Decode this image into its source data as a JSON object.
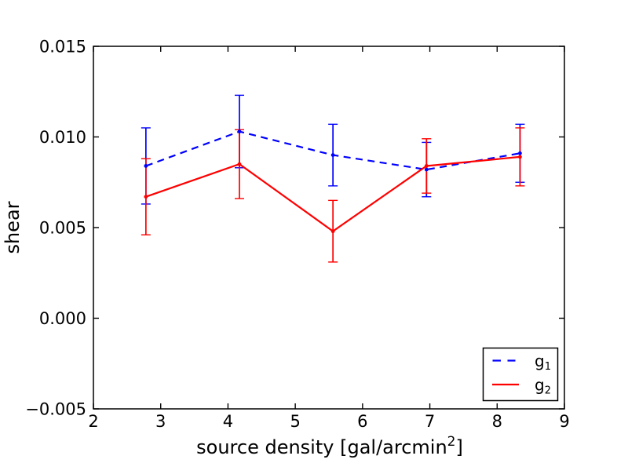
{
  "figure": {
    "background": "#ffffff",
    "axis_color": "#000000"
  },
  "chart_data": {
    "type": "line",
    "title": "",
    "xlabel": "source density [gal/arcmin^2]",
    "xlabel_parts": {
      "prefix": "source density [gal/arcmin",
      "superscript": "2",
      "suffix": "]"
    },
    "ylabel": "shear",
    "xlim": [
      2,
      9
    ],
    "ylim": [
      -0.005,
      0.015
    ],
    "grid": false,
    "legend_position": "lower right",
    "x_ticks": [
      2,
      3,
      4,
      5,
      6,
      7,
      8,
      9
    ],
    "x_tick_labels": [
      "2",
      "3",
      "4",
      "5",
      "6",
      "7",
      "8",
      "9"
    ],
    "y_ticks": [
      -0.005,
      0.0,
      0.005,
      0.01,
      0.015
    ],
    "y_tick_labels": [
      "−0.005",
      "0.000",
      "0.005",
      "0.010",
      "0.015"
    ],
    "x": [
      2.78,
      4.17,
      5.56,
      6.95,
      8.34
    ],
    "series": [
      {
        "name": "g1",
        "label_main": "g",
        "label_sub": "1",
        "color": "#0000ff",
        "line_style": "dashed",
        "marker": "point",
        "values": [
          0.0084,
          0.0103,
          0.009,
          0.0082,
          0.0091
        ],
        "yerr": [
          0.0021,
          0.002,
          0.0017,
          0.0015,
          0.0016
        ]
      },
      {
        "name": "g2",
        "label_main": "g",
        "label_sub": "2",
        "color": "#ff0000",
        "line_style": "solid",
        "marker": "point",
        "values": [
          0.0067,
          0.0085,
          0.0048,
          0.0084,
          0.0089
        ],
        "yerr": [
          0.0021,
          0.0019,
          0.0017,
          0.0015,
          0.0016
        ]
      }
    ]
  }
}
